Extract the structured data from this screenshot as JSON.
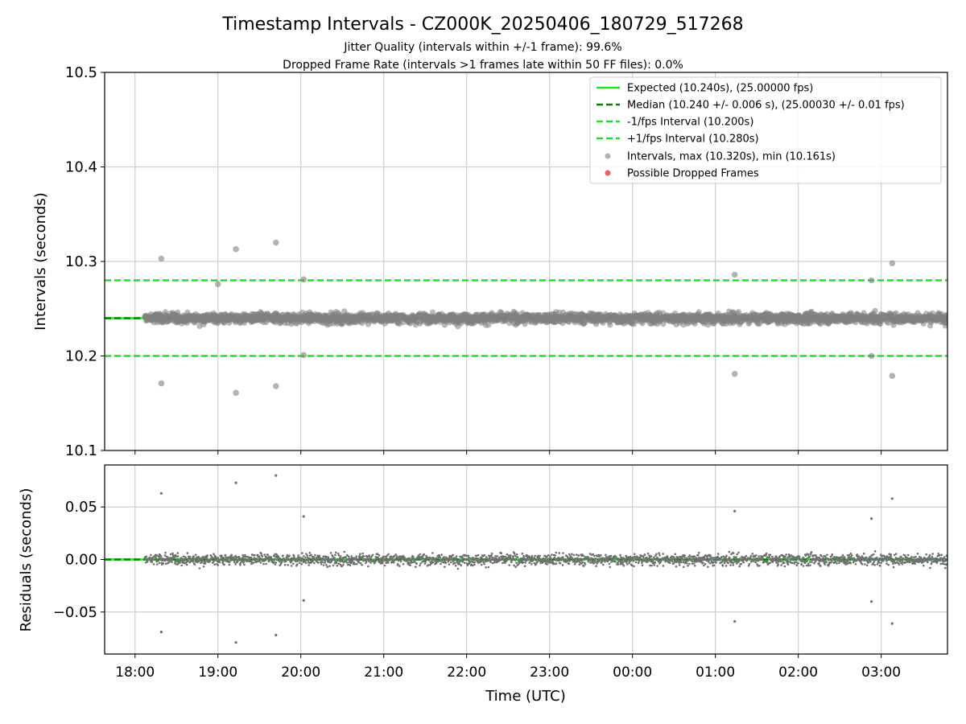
{
  "chart_data": [
    {
      "type": "scatter",
      "title": "Timestamp Intervals - CZ000K_20250406_180729_517268",
      "subtitle_lines": [
        "Jitter Quality (intervals within +/-1 frame): 99.6%",
        "Dropped Frame Rate (intervals >1 frames late within 50 FF files): 0.0%"
      ],
      "ylabel": "Intervals (seconds)",
      "ylim": [
        10.1,
        10.5
      ],
      "yticks": [
        10.1,
        10.2,
        10.3,
        10.4,
        10.5
      ],
      "ytick_labels": [
        "10.1",
        "10.2",
        "10.3",
        "10.4",
        "10.5"
      ],
      "xlim": [
        "2025-04-06T17:38",
        "2025-04-07T03:48"
      ],
      "grid": true,
      "legend_position": "top-right",
      "hlines": [
        {
          "name": "Expected (10.240s), (25.00000 fps)",
          "y": 10.24,
          "style": "solid",
          "color": "#22e022"
        },
        {
          "name": "Median (10.240 +/- 0.006 s), (25.00030 +/- 0.01 fps)",
          "y": 10.24,
          "style": "dashed",
          "color": "#008000"
        },
        {
          "name": "-1/fps Interval (10.200s)",
          "y": 10.2,
          "style": "dashed",
          "color": "#22e022"
        },
        {
          "name": "+1/fps Interval (10.280s)",
          "y": 10.28,
          "style": "dashed",
          "color": "#22e022"
        }
      ],
      "series": [
        {
          "name": "Intervals, max (10.320s), min (10.161s)",
          "color": "#808080",
          "time_range": [
            "2025-04-06T18:07",
            "2025-04-07T03:48"
          ],
          "center": 10.24,
          "outliers": [
            {
              "x": "2025-04-06T18:19",
              "y": 10.303
            },
            {
              "x": "2025-04-06T18:19",
              "y": 10.171
            },
            {
              "x": "2025-04-06T19:13",
              "y": 10.313
            },
            {
              "x": "2025-04-06T19:13",
              "y": 10.161
            },
            {
              "x": "2025-04-06T19:42",
              "y": 10.32
            },
            {
              "x": "2025-04-06T19:42",
              "y": 10.168
            },
            {
              "x": "2025-04-06T19:00",
              "y": 10.276
            },
            {
              "x": "2025-04-06T20:02",
              "y": 10.281
            },
            {
              "x": "2025-04-06T20:02",
              "y": 10.201
            },
            {
              "x": "2025-04-07T01:14",
              "y": 10.286
            },
            {
              "x": "2025-04-07T01:14",
              "y": 10.181
            },
            {
              "x": "2025-04-07T02:53",
              "y": 10.28
            },
            {
              "x": "2025-04-07T02:53",
              "y": 10.2
            },
            {
              "x": "2025-04-07T03:08",
              "y": 10.298
            },
            {
              "x": "2025-04-07T03:08",
              "y": 10.179
            }
          ]
        },
        {
          "name": "Possible Dropped Frames",
          "color": "#f06060",
          "points": []
        }
      ]
    },
    {
      "type": "scatter",
      "ylabel": "Residuals (seconds)",
      "xlabel": "Time (UTC)",
      "ylim": [
        -0.09,
        0.09
      ],
      "yticks": [
        -0.05,
        0.0,
        0.05
      ],
      "ytick_labels": [
        "−0.05",
        "0.00",
        "0.05"
      ],
      "xlim": [
        "2025-04-06T17:38",
        "2025-04-07T03:48"
      ],
      "xticks": [
        "2025-04-06T18:00",
        "2025-04-06T19:00",
        "2025-04-06T20:00",
        "2025-04-06T21:00",
        "2025-04-06T22:00",
        "2025-04-06T23:00",
        "2025-04-07T00:00",
        "2025-04-07T01:00",
        "2025-04-07T02:00",
        "2025-04-07T03:00"
      ],
      "xtick_labels": [
        "18:00",
        "19:00",
        "20:00",
        "21:00",
        "22:00",
        "23:00",
        "00:00",
        "01:00",
        "02:00",
        "03:00"
      ],
      "grid": true,
      "hlines": [
        {
          "y": 0.0,
          "style": "solid",
          "color": "#22e022"
        },
        {
          "y": 0.0,
          "style": "dashed",
          "color": "#008000"
        }
      ],
      "series": [
        {
          "color": "#808080",
          "center": 0.0,
          "outliers": [
            {
              "x": "2025-04-06T18:19",
              "y": 0.063
            },
            {
              "x": "2025-04-06T18:19",
              "y": -0.069
            },
            {
              "x": "2025-04-06T19:13",
              "y": 0.073
            },
            {
              "x": "2025-04-06T19:13",
              "y": -0.079
            },
            {
              "x": "2025-04-06T19:42",
              "y": 0.08
            },
            {
              "x": "2025-04-06T19:42",
              "y": -0.072
            },
            {
              "x": "2025-04-06T20:02",
              "y": 0.041
            },
            {
              "x": "2025-04-06T20:02",
              "y": -0.039
            },
            {
              "x": "2025-04-07T01:14",
              "y": 0.046
            },
            {
              "x": "2025-04-07T01:14",
              "y": -0.059
            },
            {
              "x": "2025-04-07T02:53",
              "y": 0.039
            },
            {
              "x": "2025-04-07T02:53",
              "y": -0.04
            },
            {
              "x": "2025-04-07T03:08",
              "y": 0.058
            },
            {
              "x": "2025-04-07T03:08",
              "y": -0.061
            }
          ]
        }
      ]
    }
  ]
}
